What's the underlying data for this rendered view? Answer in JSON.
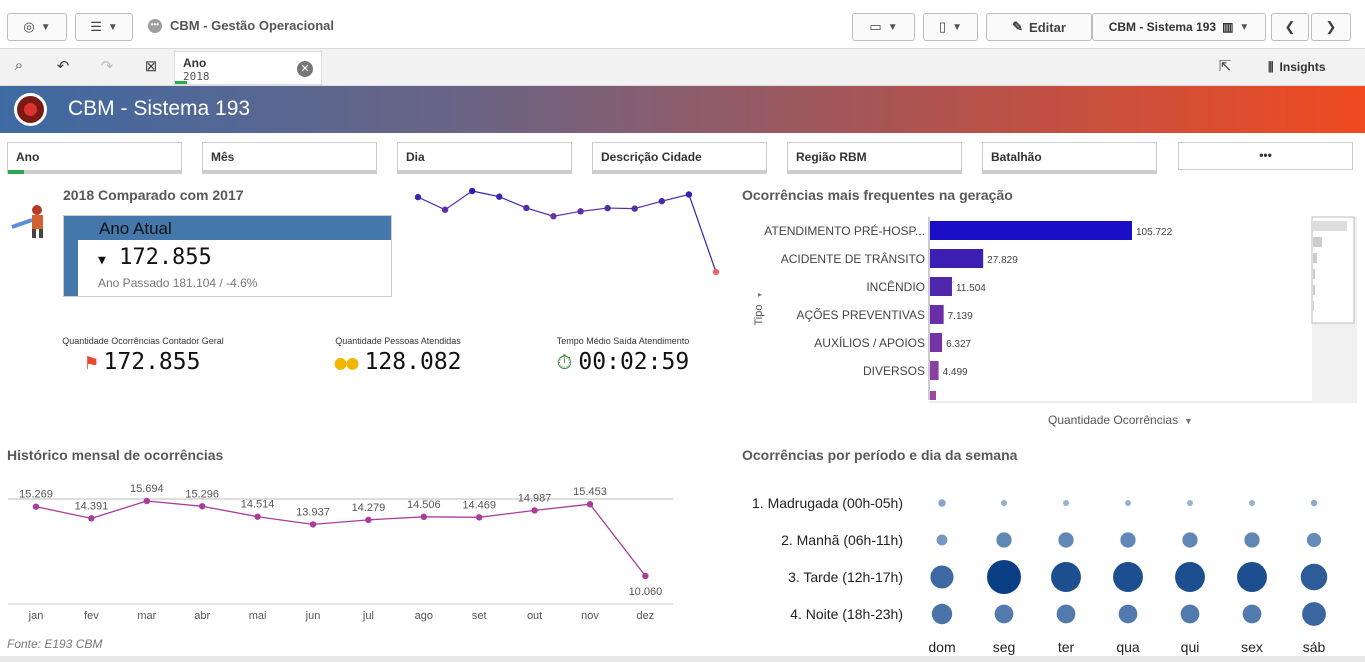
{
  "toolbar": {
    "app_title": "CBM - Gestão Operacional",
    "edit_label": "Editar",
    "sheet_label": "CBM - Sistema 193"
  },
  "selections": {
    "field": "Ano",
    "value": "2018",
    "insights_label": "Insights"
  },
  "banner": {
    "title": "CBM - Sistema 193"
  },
  "filters": [
    "Ano",
    "Mês",
    "Dia",
    "Descrição Cidade",
    "Região RBM",
    "Batalhão"
  ],
  "filters_more": "•••",
  "comparison": {
    "title": "2018 Comparado com 2017",
    "box_header": "Ano Atual",
    "value": "172.855",
    "previous": "Ano Passado 181.104 / -4.6%"
  },
  "kpis": [
    {
      "label": "Quantidade Ocorrências Contador Geral",
      "value": "172.855",
      "icon": "pin-icon",
      "color": "#e8472c"
    },
    {
      "label": "Quantidade Pessoas Atendidas",
      "value": "128.082",
      "icon": "people-icon",
      "color": "#f2b600"
    },
    {
      "label": "Tempo Médio Saída Atendimento",
      "value": "00:02:59",
      "icon": "stopwatch-icon",
      "color": "#2e7d32"
    }
  ],
  "frequent": {
    "title": "Ocorrências mais frequentes na geração",
    "dimension_label": "Tipo",
    "measure_label": "Quantidade Ocorrências"
  },
  "monthly": {
    "title": "Histórico mensal de ocorrências"
  },
  "period": {
    "title": "Ocorrências por período e dia da semana"
  },
  "footer": {
    "source": "Fonte: E193 CBM"
  },
  "chart_data": [
    {
      "type": "line",
      "name": "sparkline",
      "values": [
        15269,
        14391,
        15694,
        15296,
        14514,
        13937,
        14279,
        14506,
        14469,
        14987,
        15453,
        10060
      ]
    },
    {
      "type": "bar",
      "orientation": "horizontal",
      "title": "Ocorrências mais frequentes na geração",
      "xlabel": "Quantidade Ocorrências",
      "ylabel": "Tipo",
      "categories": [
        "ATENDIMENTO PRÉ-HOSP...",
        "ACIDENTE DE TRÂNSITO",
        "INCÊNDIO",
        "AÇÕES PREVENTIVAS",
        "AUXÍLIOS / APOIOS",
        "DIVERSOS"
      ],
      "values": [
        105722,
        27829,
        11504,
        7139,
        6327,
        4499
      ],
      "labels": [
        "105.722",
        "27.829",
        "11.504",
        "7.139",
        "6.327",
        "4.499"
      ],
      "colors": [
        "#1a0fc7",
        "#3d1fb4",
        "#4e27ad",
        "#6a2fa8",
        "#7433a6",
        "#8c3fa2"
      ]
    },
    {
      "type": "line",
      "title": "Histórico mensal de ocorrências",
      "categories": [
        "jan",
        "fev",
        "mar",
        "abr",
        "mai",
        "jun",
        "jul",
        "ago",
        "set",
        "out",
        "nov",
        "dez"
      ],
      "values": [
        15269,
        14391,
        15694,
        15296,
        14514,
        13937,
        14279,
        14506,
        14469,
        14987,
        15453,
        10060
      ],
      "labels": [
        "15.269",
        "14.391",
        "15.694",
        "15.296",
        "14.514",
        "13.937",
        "14.279",
        "14.506",
        "14.469",
        "14.987",
        "15.453",
        "10.060"
      ],
      "color": "#a83d9c"
    },
    {
      "type": "scatter",
      "title": "Ocorrências por período e dia da semana",
      "rows": [
        "1. Madrugada (00h-05h)",
        "2. Manhã (06h-11h)",
        "3. Tarde (12h-17h)",
        "4. Noite (18h-23h)"
      ],
      "columns": [
        "dom",
        "seg",
        "ter",
        "qua",
        "qui",
        "sex",
        "sáb"
      ],
      "relative_size": [
        [
          0.22,
          0.15,
          0.12,
          0.12,
          0.13,
          0.13,
          0.19
        ],
        [
          0.32,
          0.45,
          0.45,
          0.45,
          0.45,
          0.45,
          0.42
        ],
        [
          0.68,
          1.0,
          0.88,
          0.88,
          0.88,
          0.88,
          0.78
        ],
        [
          0.6,
          0.55,
          0.55,
          0.55,
          0.55,
          0.55,
          0.7
        ]
      ]
    }
  ]
}
